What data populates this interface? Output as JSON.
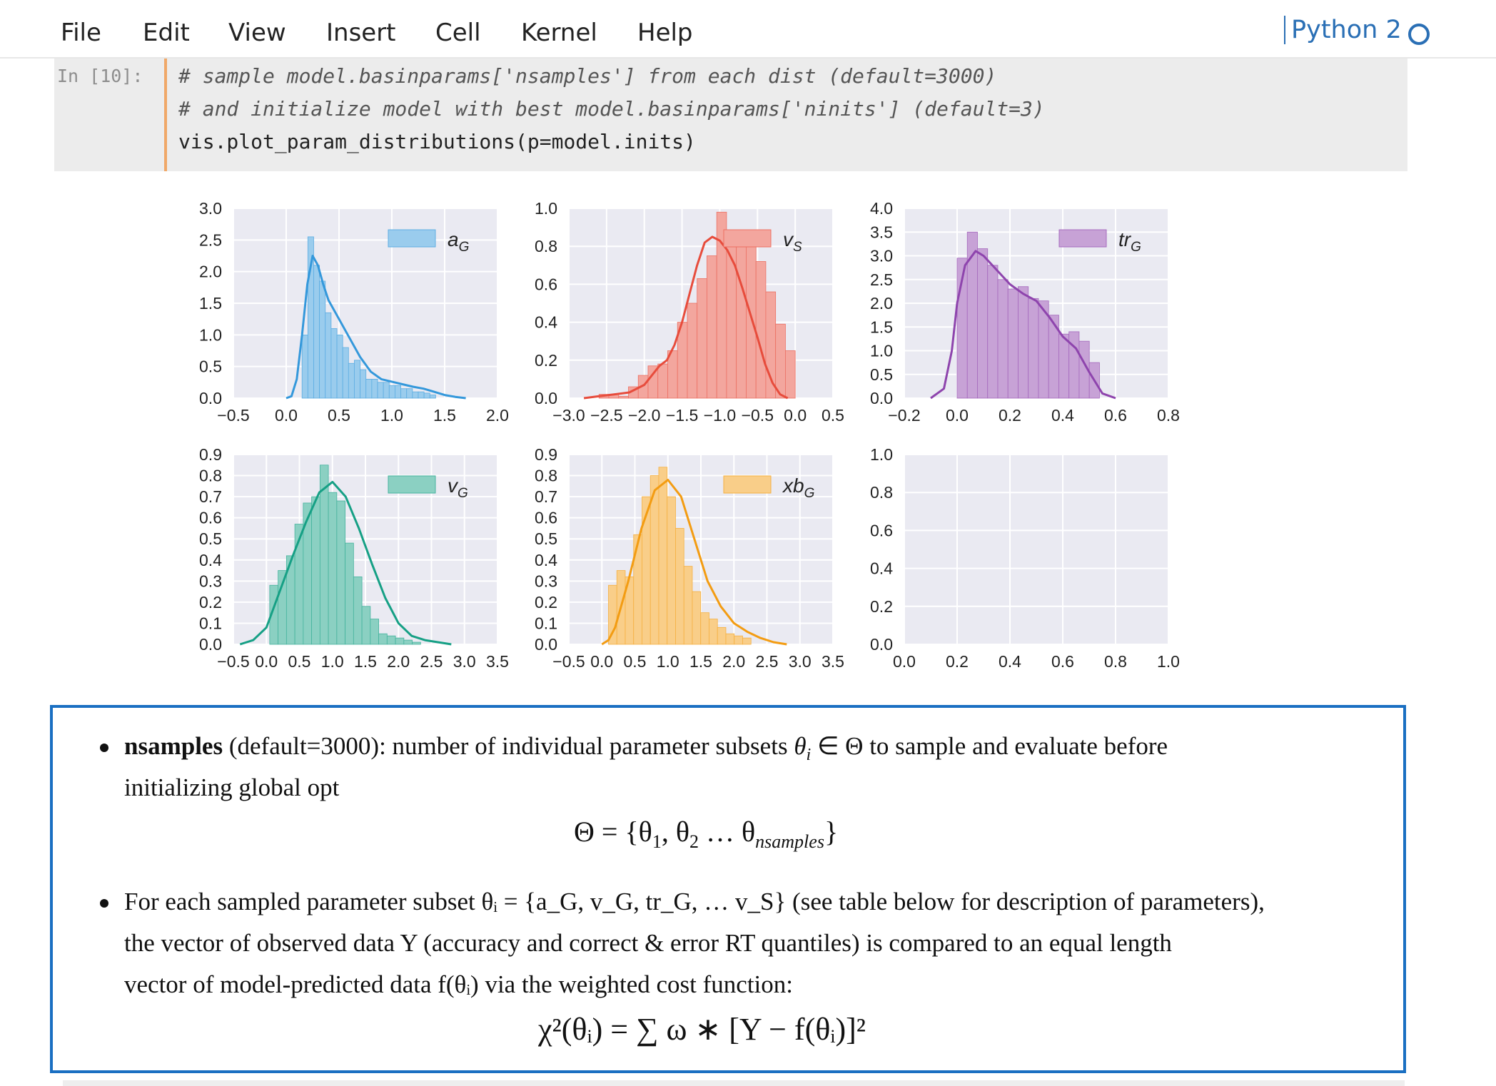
{
  "menu": {
    "items": [
      "File",
      "Edit",
      "View",
      "Insert",
      "Cell",
      "Kernel",
      "Help"
    ],
    "kernel_name": "Python 2"
  },
  "code_cell": {
    "prompt": "In [10]:",
    "lines": [
      "# sample model.basinparams['nsamples'] from each dist (default=3000)",
      "# and initialize model with best model.basinparams['ninits'] (default=3)",
      "vis.plot_param_distributions(p=model.inits)"
    ]
  },
  "chart_data": [
    {
      "type": "bar",
      "legend": "a_G",
      "color": "#3498db",
      "xlim": [
        -0.5,
        2.0
      ],
      "ylim": [
        0.0,
        3.0
      ],
      "xticks": [
        "−0.5",
        "0.0",
        "0.5",
        "1.0",
        "1.5",
        "2.0"
      ],
      "yticks": [
        "0.0",
        "0.5",
        "1.0",
        "1.5",
        "2.0",
        "2.5",
        "3.0"
      ],
      "bin_start": 0.15,
      "bin_width": 0.055,
      "values": [
        1.0,
        2.55,
        2.1,
        1.85,
        1.35,
        1.1,
        1.0,
        0.8,
        0.55,
        0.6,
        0.45,
        0.3,
        0.3,
        0.25,
        0.25,
        0.2,
        0.2,
        0.15,
        0.15,
        0.1,
        0.1,
        0.08,
        0.05
      ],
      "kde": [
        [
          0.0,
          0.0
        ],
        [
          0.05,
          0.03
        ],
        [
          0.1,
          0.3
        ],
        [
          0.15,
          1.0
        ],
        [
          0.2,
          1.8
        ],
        [
          0.25,
          2.25
        ],
        [
          0.3,
          2.1
        ],
        [
          0.35,
          1.8
        ],
        [
          0.4,
          1.55
        ],
        [
          0.5,
          1.25
        ],
        [
          0.6,
          0.95
        ],
        [
          0.7,
          0.65
        ],
        [
          0.8,
          0.42
        ],
        [
          0.9,
          0.3
        ],
        [
          1.0,
          0.26
        ],
        [
          1.1,
          0.22
        ],
        [
          1.2,
          0.18
        ],
        [
          1.3,
          0.15
        ],
        [
          1.4,
          0.1
        ],
        [
          1.5,
          0.05
        ],
        [
          1.6,
          0.02
        ],
        [
          1.7,
          0.0
        ]
      ]
    },
    {
      "type": "bar",
      "legend": "v_S",
      "color": "#e74c3c",
      "xlim": [
        -3.0,
        0.5
      ],
      "ylim": [
        0.0,
        1.0
      ],
      "xticks": [
        "−3.0",
        "−2.5",
        "−2.0",
        "−1.5",
        "−1.0",
        "−0.5",
        "0.0",
        "0.5"
      ],
      "yticks": [
        "0.0",
        "0.2",
        "0.4",
        "0.6",
        "0.8",
        "1.0"
      ],
      "bin_start": -2.6,
      "bin_width": 0.13,
      "values": [
        0.02,
        0.02,
        0.01,
        0.06,
        0.12,
        0.17,
        0.18,
        0.25,
        0.4,
        0.5,
        0.63,
        0.75,
        0.98,
        0.82,
        0.83,
        0.8,
        0.72,
        0.56,
        0.39,
        0.25
      ],
      "kde": [
        [
          -2.8,
          0.0
        ],
        [
          -2.6,
          0.01
        ],
        [
          -2.4,
          0.02
        ],
        [
          -2.2,
          0.03
        ],
        [
          -2.0,
          0.07
        ],
        [
          -1.9,
          0.12
        ],
        [
          -1.8,
          0.17
        ],
        [
          -1.7,
          0.2
        ],
        [
          -1.6,
          0.28
        ],
        [
          -1.5,
          0.4
        ],
        [
          -1.4,
          0.55
        ],
        [
          -1.3,
          0.7
        ],
        [
          -1.2,
          0.82
        ],
        [
          -1.1,
          0.85
        ],
        [
          -1.0,
          0.83
        ],
        [
          -0.9,
          0.78
        ],
        [
          -0.8,
          0.7
        ],
        [
          -0.7,
          0.58
        ],
        [
          -0.6,
          0.45
        ],
        [
          -0.5,
          0.32
        ],
        [
          -0.4,
          0.18
        ],
        [
          -0.3,
          0.08
        ],
        [
          -0.2,
          0.02
        ],
        [
          -0.1,
          0.0
        ]
      ]
    },
    {
      "type": "bar",
      "legend": "tr_G",
      "color": "#8e44ad",
      "xlim": [
        -0.2,
        0.8
      ],
      "ylim": [
        0.0,
        4.0
      ],
      "xticks": [
        "−0.2",
        "0.0",
        "0.2",
        "0.4",
        "0.6",
        "0.8"
      ],
      "yticks": [
        "0.0",
        "0.5",
        "1.0",
        "1.5",
        "2.0",
        "2.5",
        "3.0",
        "3.5",
        "4.0"
      ],
      "bin_start": 0.0,
      "bin_width": 0.0385,
      "values": [
        2.95,
        3.5,
        3.15,
        2.8,
        2.5,
        2.3,
        2.35,
        2.1,
        2.05,
        1.75,
        1.35,
        1.4,
        1.2,
        0.75
      ],
      "kde": [
        [
          -0.1,
          0.0
        ],
        [
          -0.05,
          0.2
        ],
        [
          -0.02,
          1.0
        ],
        [
          0.0,
          2.0
        ],
        [
          0.03,
          2.8
        ],
        [
          0.07,
          3.1
        ],
        [
          0.1,
          3.0
        ],
        [
          0.15,
          2.7
        ],
        [
          0.2,
          2.4
        ],
        [
          0.25,
          2.2
        ],
        [
          0.3,
          2.05
        ],
        [
          0.35,
          1.7
        ],
        [
          0.4,
          1.3
        ],
        [
          0.45,
          1.05
        ],
        [
          0.5,
          0.55
        ],
        [
          0.55,
          0.1
        ],
        [
          0.6,
          0.0
        ]
      ]
    },
    {
      "type": "bar",
      "legend": "v_G",
      "color": "#16a085",
      "xlim": [
        -0.5,
        3.5
      ],
      "ylim": [
        0.0,
        0.9
      ],
      "xticks": [
        "−0.5",
        "0.0",
        "0.5",
        "1.0",
        "1.5",
        "2.0",
        "2.5",
        "3.0",
        "3.5"
      ],
      "yticks": [
        "0.0",
        "0.1",
        "0.2",
        "0.3",
        "0.4",
        "0.5",
        "0.6",
        "0.7",
        "0.8",
        "0.9"
      ],
      "bin_start": 0.05,
      "bin_width": 0.127,
      "values": [
        0.28,
        0.35,
        0.42,
        0.57,
        0.67,
        0.7,
        0.85,
        0.72,
        0.68,
        0.48,
        0.32,
        0.18,
        0.12,
        0.05,
        0.04,
        0.03,
        0.02,
        0.01
      ],
      "kde": [
        [
          -0.4,
          0.0
        ],
        [
          -0.2,
          0.02
        ],
        [
          0.0,
          0.08
        ],
        [
          0.2,
          0.25
        ],
        [
          0.4,
          0.42
        ],
        [
          0.6,
          0.58
        ],
        [
          0.8,
          0.72
        ],
        [
          1.0,
          0.77
        ],
        [
          1.2,
          0.7
        ],
        [
          1.4,
          0.55
        ],
        [
          1.6,
          0.38
        ],
        [
          1.8,
          0.22
        ],
        [
          2.0,
          0.1
        ],
        [
          2.2,
          0.04
        ],
        [
          2.4,
          0.02
        ],
        [
          2.8,
          0.0
        ]
      ]
    },
    {
      "type": "bar",
      "legend": "xb_G",
      "color": "#f39c12",
      "xlim": [
        -0.5,
        3.5
      ],
      "ylim": [
        0.0,
        0.9
      ],
      "xticks": [
        "−0.5",
        "0.0",
        "0.5",
        "1.0",
        "1.5",
        "2.0",
        "2.5",
        "3.0",
        "3.5"
      ],
      "yticks": [
        "0.0",
        "0.1",
        "0.2",
        "0.3",
        "0.4",
        "0.5",
        "0.6",
        "0.7",
        "0.8",
        "0.9"
      ],
      "bin_start": 0.1,
      "bin_width": 0.127,
      "values": [
        0.28,
        0.35,
        0.32,
        0.52,
        0.7,
        0.8,
        0.84,
        0.7,
        0.55,
        0.37,
        0.25,
        0.15,
        0.12,
        0.08,
        0.05,
        0.04,
        0.03
      ],
      "kde": [
        [
          0.0,
          0.0
        ],
        [
          0.1,
          0.02
        ],
        [
          0.2,
          0.08
        ],
        [
          0.4,
          0.3
        ],
        [
          0.6,
          0.55
        ],
        [
          0.8,
          0.73
        ],
        [
          1.0,
          0.78
        ],
        [
          1.2,
          0.7
        ],
        [
          1.4,
          0.5
        ],
        [
          1.6,
          0.3
        ],
        [
          1.8,
          0.18
        ],
        [
          2.0,
          0.1
        ],
        [
          2.2,
          0.06
        ],
        [
          2.4,
          0.03
        ],
        [
          2.6,
          0.01
        ],
        [
          2.8,
          0.0
        ]
      ]
    },
    {
      "type": "bar",
      "legend": "",
      "color": "#999999",
      "xlim": [
        0.0,
        1.0
      ],
      "ylim": [
        0.0,
        1.0
      ],
      "xticks": [
        "0.0",
        "0.2",
        "0.4",
        "0.6",
        "0.8",
        "1.0"
      ],
      "yticks": [
        "0.0",
        "0.2",
        "0.4",
        "0.6",
        "0.8",
        "1.0"
      ],
      "values": [],
      "kde": []
    }
  ],
  "markdown": {
    "bullet1_bold": "nsamples",
    "bullet1_text_a": " (default=3000): number of individual parameter subsets ",
    "bullet1_math_a": "θ",
    "bullet1_sub_a": "i",
    "bullet1_sym": " ∈ Θ ",
    "bullet1_text_b": "to sample and evaluate before",
    "bullet1_line2": "initializing global opt",
    "eq1_lhs": "Θ = {θ",
    "eq1_s1": "1",
    "eq1_mid": ", θ",
    "eq1_s2": "2",
    "eq1_dots": " … θ",
    "eq1_s3": "nsamples",
    "eq1_end": "}",
    "bullet2_line1": "For each sampled parameter subset θᵢ = {a_G, v_G, tr_G, … v_S} (see table below for description of parameters),",
    "bullet2_line2": "the vector of observed data Y (accuracy and correct & error RT quantiles) is compared to an equal length",
    "bullet2_line3": "vector of model-predicted data f(θᵢ) via the weighted cost function:",
    "eq2": "χ²(θᵢ) = ∑ ω ∗ [Y − f(θᵢ)]²"
  }
}
